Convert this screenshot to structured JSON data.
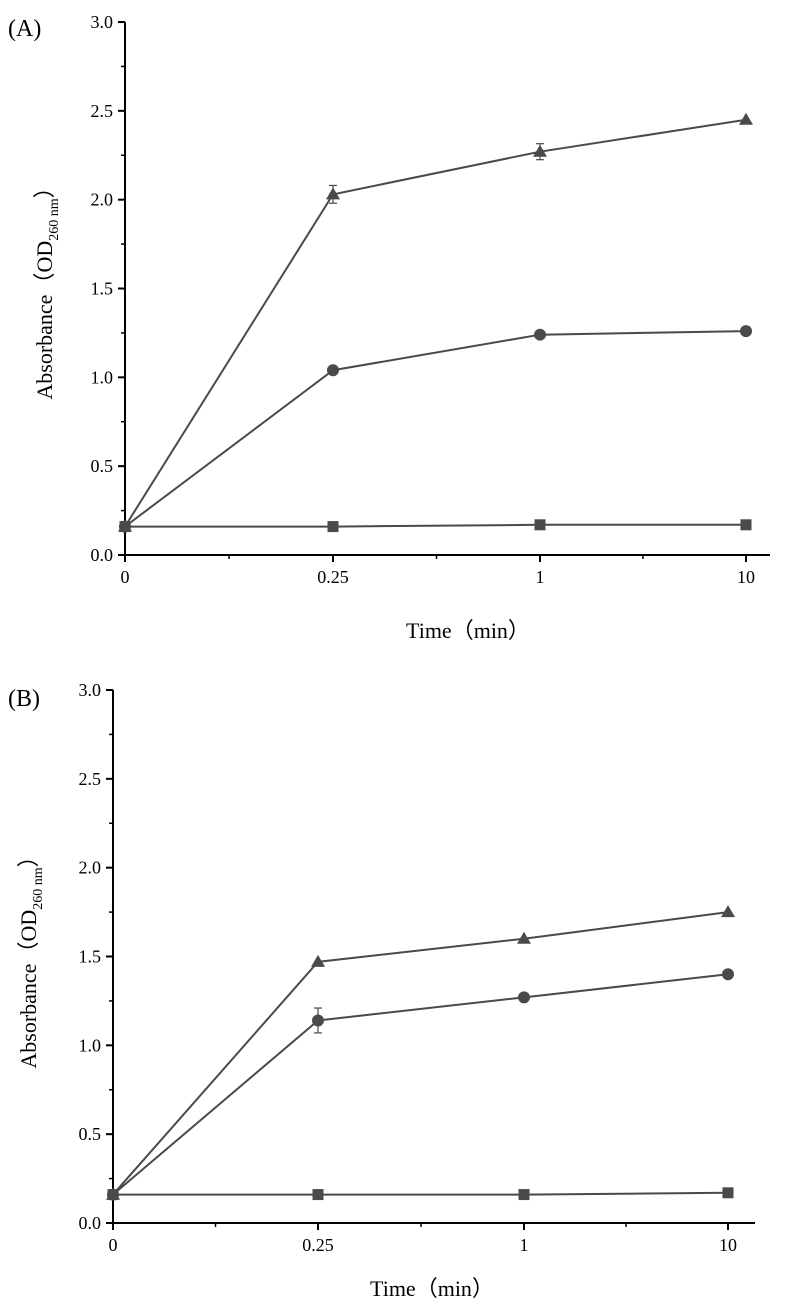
{
  "chart_data": [
    {
      "panel_label": "(A)",
      "type": "line",
      "x_categories": [
        "0",
        "0.25",
        "1",
        "10"
      ],
      "y_ticks": [
        "0.0",
        "0.5",
        "1.0",
        "1.5",
        "2.0",
        "2.5",
        "3.0"
      ],
      "ylim": [
        0,
        3.0
      ],
      "xlabel": "Time（min）",
      "ylabel_main": "Absorbance（OD",
      "ylabel_sub": "260 nm",
      "ylabel_close": "）",
      "series": [
        {
          "marker": "triangle",
          "values": [
            0.16,
            2.03,
            2.27,
            2.45
          ],
          "errors": [
            0,
            0.05,
            0.045,
            0
          ]
        },
        {
          "marker": "circle",
          "values": [
            0.16,
            1.04,
            1.24,
            1.26
          ],
          "errors": [
            0,
            0,
            0,
            0
          ]
        },
        {
          "marker": "square",
          "values": [
            0.16,
            0.16,
            0.17,
            0.17
          ],
          "errors": [
            0,
            0,
            0,
            0
          ]
        }
      ],
      "color": "#4a4a4a"
    },
    {
      "panel_label": "(B)",
      "type": "line",
      "x_categories": [
        "0",
        "0.25",
        "1",
        "10"
      ],
      "y_ticks": [
        "0.0",
        "0.5",
        "1.0",
        "1.5",
        "2.0",
        "2.5",
        "3.0"
      ],
      "ylim": [
        0,
        3.0
      ],
      "xlabel": "Time（min）",
      "ylabel_main": "Absorbance（OD",
      "ylabel_sub": "260 nm",
      "ylabel_close": "）",
      "series": [
        {
          "marker": "triangle",
          "values": [
            0.16,
            1.47,
            1.6,
            1.75
          ],
          "errors": [
            0,
            0,
            0,
            0
          ]
        },
        {
          "marker": "circle",
          "values": [
            0.16,
            1.14,
            1.27,
            1.4
          ],
          "errors": [
            0,
            0.07,
            0,
            0
          ]
        },
        {
          "marker": "square",
          "values": [
            0.16,
            0.16,
            0.16,
            0.17
          ],
          "errors": [
            0,
            0,
            0,
            0
          ]
        }
      ],
      "color": "#4a4a4a"
    }
  ]
}
